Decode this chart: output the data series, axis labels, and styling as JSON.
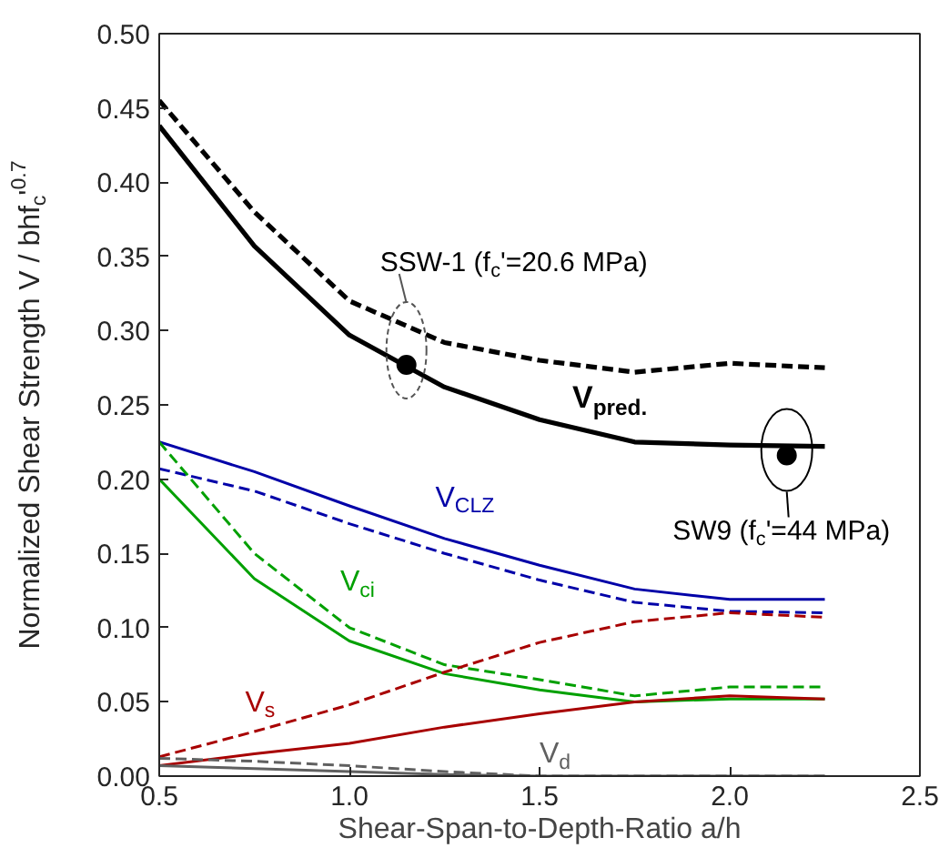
{
  "chart_data": {
    "type": "line",
    "xlabel": "Shear-Span-to-Depth-Ratio a/h",
    "ylabel": "Normalized Shear Strength V / bhf$_{c}$'$^{0.7}$",
    "x": [
      0.5,
      0.75,
      1.0,
      1.25,
      1.5,
      1.75,
      2.0,
      2.25
    ],
    "xlim": [
      0.5,
      2.5
    ],
    "xticks": [
      {
        "value": 0.5,
        "label": "0.5"
      },
      {
        "value": 1.0,
        "label": "1.0"
      },
      {
        "value": 1.5,
        "label": "1.5"
      },
      {
        "value": 2.0,
        "label": "2.0"
      },
      {
        "value": 2.5,
        "label": "2.5"
      }
    ],
    "ylim": [
      0,
      0.5
    ],
    "yticks": [
      {
        "value": 0,
        "label": "0.00"
      },
      {
        "value": 0.05,
        "label": "0.05"
      },
      {
        "value": 0.1,
        "label": "0.10"
      },
      {
        "value": 0.15,
        "label": "0.15"
      },
      {
        "value": 0.2,
        "label": "0.20"
      },
      {
        "value": 0.25,
        "label": "0.25"
      },
      {
        "value": 0.3,
        "label": "0.30"
      },
      {
        "value": 0.35,
        "label": "0.35"
      },
      {
        "value": 0.4,
        "label": "0.40"
      },
      {
        "value": 0.45,
        "label": "0.45"
      },
      {
        "value": 0.5,
        "label": "0.50"
      }
    ],
    "grid": false,
    "legend": false,
    "marker": "none",
    "series": [
      {
        "name": "V$_{pred.}$",
        "color": "#000000",
        "line_style": "solid",
        "values": [
          0.438,
          0.357,
          0.297,
          0.262,
          0.24,
          0.225,
          0.223,
          0.222
        ]
      },
      {
        "color": "#000000",
        "line_style": "dashed",
        "values": [
          0.455,
          0.38,
          0.32,
          0.292,
          0.28,
          0.272,
          0.278,
          0.275
        ]
      },
      {
        "name": "V$_{CLZ}$",
        "color": "#0000a8",
        "line_style": "solid",
        "values": [
          0.225,
          0.205,
          0.182,
          0.16,
          0.142,
          0.126,
          0.119,
          0.119
        ]
      },
      {
        "color": "#0000a8",
        "line_style": "dashed",
        "values": [
          0.207,
          0.192,
          0.17,
          0.15,
          0.132,
          0.117,
          0.111,
          0.11
        ]
      },
      {
        "name": "V$_{ci}$",
        "color": "#00a000",
        "line_style": "solid",
        "values": [
          0.2,
          0.133,
          0.091,
          0.069,
          0.058,
          0.05,
          0.052,
          0.052
        ]
      },
      {
        "color": "#00a000",
        "line_style": "dashed",
        "values": [
          0.225,
          0.15,
          0.1,
          0.075,
          0.065,
          0.054,
          0.06,
          0.06
        ]
      },
      {
        "name": "V$_{s}$",
        "color": "#a80000",
        "line_style": "solid",
        "values": [
          0.007,
          0.015,
          0.022,
          0.033,
          0.042,
          0.05,
          0.054,
          0.052
        ]
      },
      {
        "color": "#a80000",
        "line_style": "dashed",
        "values": [
          0.013,
          0.03,
          0.048,
          0.07,
          0.09,
          0.104,
          0.11,
          0.107
        ]
      },
      {
        "name": "V$_{d}$",
        "color": "#606060",
        "line_style": "solid",
        "values": [
          0.007,
          0.005,
          0.003,
          0.001,
          0,
          0,
          0,
          0
        ]
      },
      {
        "color": "#606060",
        "line_style": "dashed",
        "values": [
          0.012,
          0.01,
          0.007,
          0.003,
          0,
          0,
          0,
          0
        ]
      },
      {
        "type": "scatter",
        "marker": "circle",
        "color": "#000000",
        "x": [
          1.15
        ],
        "values": [
          0.277
        ]
      },
      {
        "type": "scatter",
        "marker": "circle",
        "color": "#000000",
        "x": [
          2.15
        ],
        "values": [
          0.216
        ]
      }
    ],
    "annotations": [
      "SSW-1 (f$_{c}$'=20.6 MPa)",
      "SW9 (f$_{c}$'=44 MPa)"
    ]
  }
}
